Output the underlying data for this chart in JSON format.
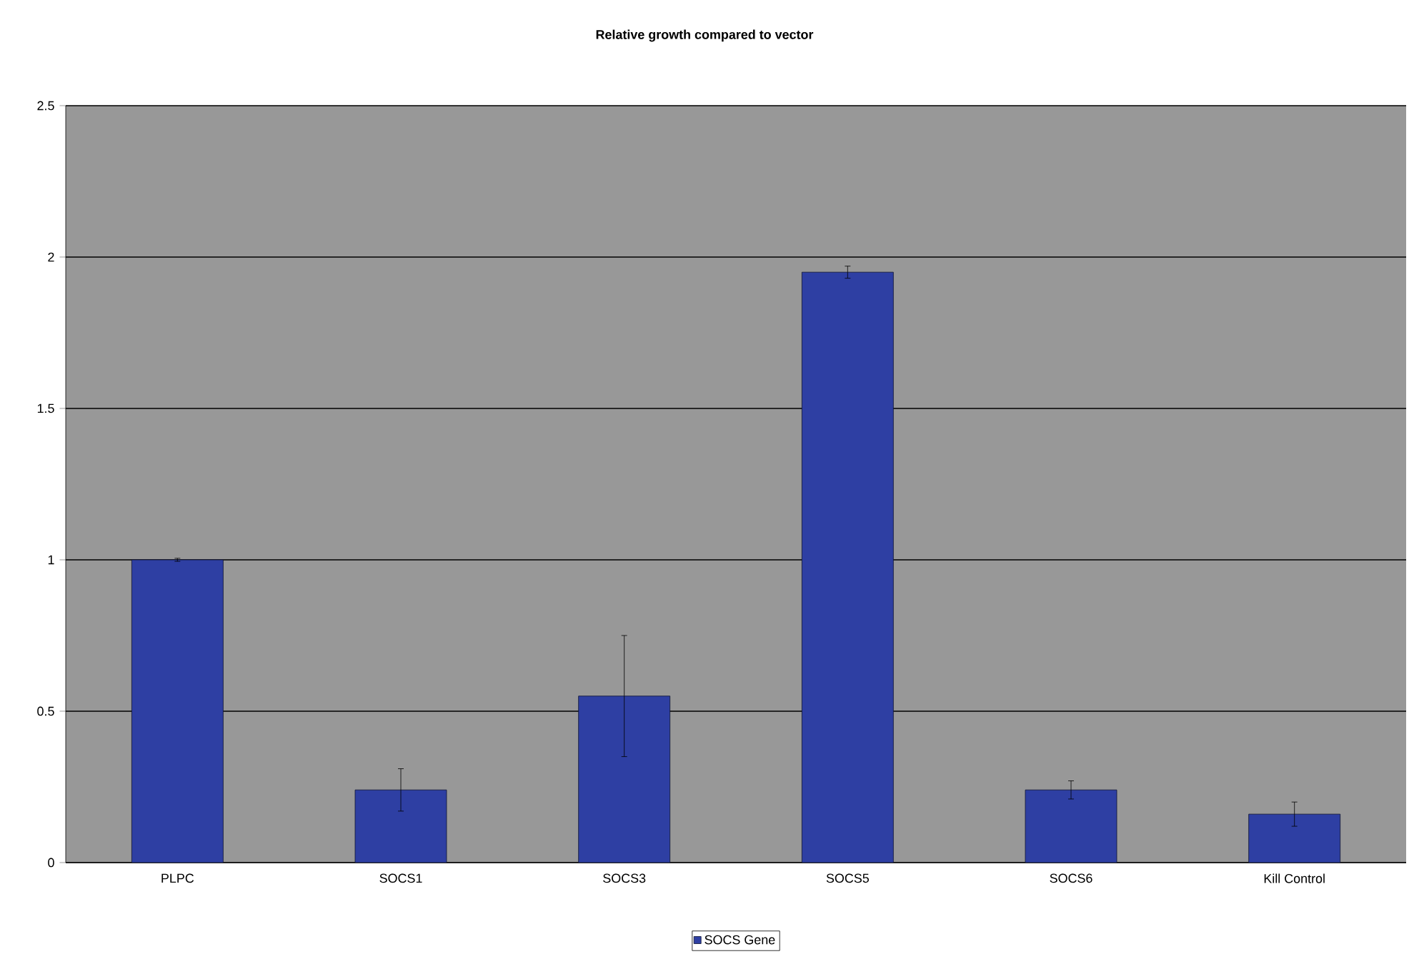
{
  "chart_data": {
    "type": "bar",
    "title": "Relative growth compared to vector",
    "categories": [
      "PLPC",
      "SOCS1",
      "SOCS3",
      "SOCS5",
      "SOCS6",
      "Kill Control"
    ],
    "series": [
      {
        "name": "SOCS Gene",
        "color": "#2e3fa3",
        "values": [
          1.0,
          0.24,
          0.55,
          1.95,
          0.24,
          0.16
        ],
        "errors": [
          0.005,
          0.07,
          0.2,
          0.02,
          0.03,
          0.04
        ]
      }
    ],
    "ylim": [
      0,
      2.5
    ],
    "yticks": [
      0,
      {
        "value": 0.5,
        "label": "0.5"
      },
      1,
      {
        "value": 1.5,
        "label": "1.5"
      },
      2,
      {
        "value": 2.5,
        "label": "2.5"
      }
    ],
    "grid": "y",
    "legend": "bottom"
  }
}
